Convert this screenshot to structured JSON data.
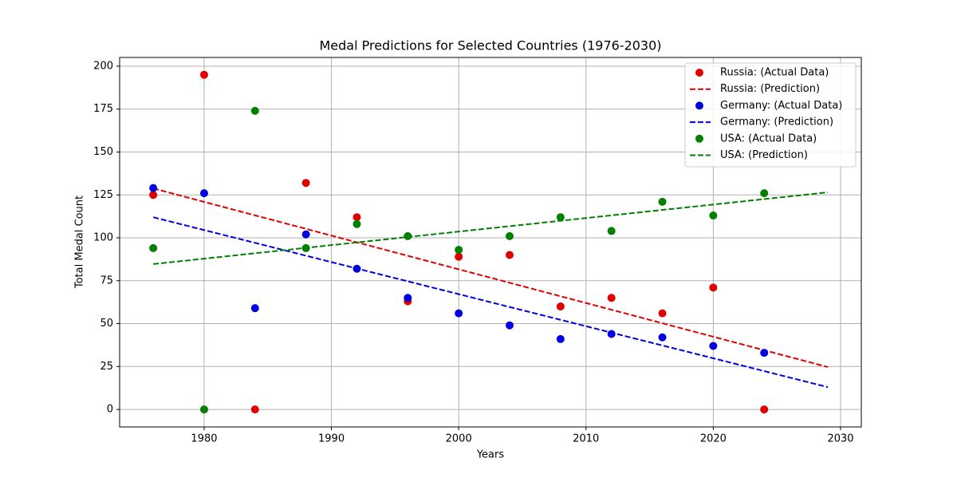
{
  "chart_data": {
    "type": "scatter",
    "title": "Medal Predictions for Selected Countries (1976-2030)",
    "x_label": "Years",
    "y_label": "Total Medal Count",
    "xlim": [
      1973.36,
      2031.63
    ],
    "xticks": [
      1980,
      1990,
      2000,
      2010,
      2020,
      2030
    ],
    "ylim": [
      -10.2,
      205.1
    ],
    "yticks": [
      0,
      25,
      50,
      75,
      100,
      125,
      150,
      175,
      200
    ],
    "grid": true,
    "legend": "upper right",
    "series": [
      {
        "name": "Russia: (Actual Data)",
        "type": "scatter",
        "color": "#e00000",
        "x": [
          1976,
          1980,
          1984,
          1988,
          1992,
          1996,
          2000,
          2004,
          2008,
          2012,
          2016,
          2020,
          2024
        ],
        "values": [
          125,
          195,
          0,
          132,
          112,
          63,
          89,
          90,
          60,
          65,
          56,
          71,
          0
        ]
      },
      {
        "name": "Russia: (Prediction)",
        "type": "line",
        "linestyle": "dashed",
        "color": "#e00000",
        "x": [
          1976,
          2029
        ],
        "values": [
          128.8,
          24.7
        ]
      },
      {
        "name": "Germany: (Actual Data)",
        "type": "scatter",
        "color": "#0000e0",
        "x": [
          1976,
          1980,
          1984,
          1988,
          1992,
          1996,
          2000,
          2004,
          2008,
          2012,
          2016,
          2020,
          2024
        ],
        "values": [
          129,
          126,
          59,
          102,
          82,
          65,
          56,
          49,
          41,
          44,
          42,
          37,
          33
        ]
      },
      {
        "name": "Germany: (Prediction)",
        "type": "line",
        "linestyle": "dashed",
        "color": "#0000e0",
        "x": [
          1976,
          2029
        ],
        "values": [
          112,
          13
        ]
      },
      {
        "name": "USA: (Actual Data)",
        "type": "scatter",
        "color": "#008000",
        "x": [
          1976,
          1980,
          1984,
          1988,
          1992,
          1996,
          2000,
          2004,
          2008,
          2012,
          2016,
          2020,
          2024
        ],
        "values": [
          94,
          0,
          174,
          94,
          108,
          101,
          93,
          101,
          112,
          104,
          121,
          113,
          126
        ]
      },
      {
        "name": "USA: (Prediction)",
        "type": "line",
        "linestyle": "dashed",
        "color": "#008000",
        "x": [
          1976,
          2029
        ],
        "values": [
          84.7,
          126.5
        ]
      }
    ]
  }
}
